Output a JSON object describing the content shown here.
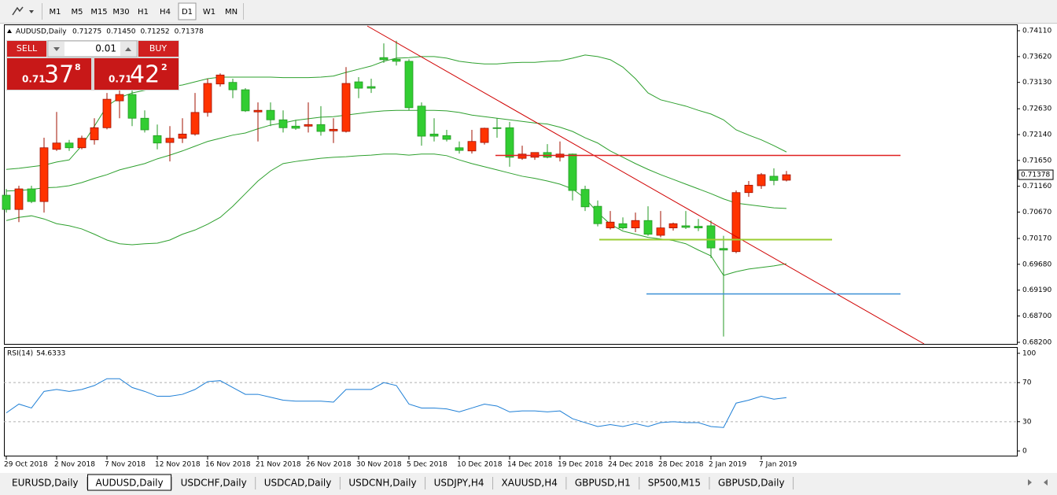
{
  "toolbar": {
    "timeframes": [
      "M1",
      "M5",
      "M15",
      "M30",
      "H1",
      "H4",
      "D1",
      "W1",
      "MN"
    ],
    "active": "D1"
  },
  "trade_panel": {
    "sell": "SELL",
    "buy": "BUY",
    "lot": "0.01",
    "bid_prefix": "0.71",
    "bid_big": "37",
    "bid_small": "8",
    "ask_prefix": "0.71",
    "ask_big": "42",
    "ask_small": "2"
  },
  "tabs": {
    "items": [
      "EURUSD,Daily",
      "AUDUSD,Daily",
      "USDCHF,Daily",
      "USDCAD,Daily",
      "USDCNH,Daily",
      "USDJPY,H4",
      "XAUUSD,H4",
      "GBPUSD,H1",
      "SP500,M15",
      "GBPUSD,Daily"
    ],
    "active": "AUDUSD,Daily"
  },
  "chart_data": [
    {
      "type": "candlestick",
      "symbol": "AUDUSD,Daily",
      "ohlc_labels": [
        "0.71275",
        "0.71450",
        "0.71252",
        "0.71378"
      ],
      "categories": [
        "29 Oct 2018",
        null,
        null,
        null,
        "2 Nov 2018",
        null,
        null,
        null,
        "7 Nov 2018",
        null,
        null,
        null,
        "12 Nov 2018",
        null,
        null,
        null,
        "16 Nov 2018",
        null,
        null,
        null,
        "21 Nov 2018",
        null,
        null,
        null,
        "26 Nov 2018",
        null,
        null,
        null,
        "30 Nov 2018",
        null,
        null,
        null,
        "5 Dec 2018",
        null,
        null,
        null,
        "10 Dec 2018",
        null,
        null,
        null,
        "14 Dec 2018",
        null,
        null,
        null,
        "19 Dec 2018",
        null,
        null,
        null,
        "24 Dec 2018",
        null,
        null,
        null,
        "28 Dec 2018",
        null,
        null,
        null,
        "2 Jan 2019",
        null,
        null,
        null,
        "7 Jan 2019",
        null,
        null
      ],
      "open": [
        0.7099,
        0.7072,
        0.7111,
        0.7087,
        0.7186,
        0.7198,
        0.7189,
        0.7204,
        0.7227,
        0.7278,
        0.729,
        0.7245,
        0.7212,
        0.7199,
        0.7207,
        0.7215,
        0.7256,
        0.731,
        0.7313,
        0.7299,
        0.7257,
        0.726,
        0.7242,
        0.723,
        0.723,
        0.7233,
        0.7221,
        0.722,
        0.7314,
        0.7305,
        0.736,
        0.7357,
        0.7353,
        0.7268,
        0.7215,
        0.7212,
        0.7189,
        0.7183,
        0.7199,
        0.7227,
        0.7227,
        0.7169,
        0.7171,
        0.718,
        0.7171,
        0.7177,
        0.711,
        0.7078,
        0.7037,
        0.7045,
        0.7037,
        0.7051,
        0.7023,
        0.7037,
        0.7041,
        0.704,
        0.7041,
        0.6998,
        0.6992,
        0.7104,
        0.7117,
        0.7135,
        0.71275
      ],
      "high": [
        0.7111,
        0.7117,
        0.7117,
        0.7208,
        0.7257,
        0.7204,
        0.7212,
        0.7245,
        0.7293,
        0.7305,
        0.7298,
        0.726,
        0.7233,
        0.723,
        0.7245,
        0.7293,
        0.732,
        0.733,
        0.732,
        0.7302,
        0.7275,
        0.7275,
        0.726,
        0.7242,
        0.7275,
        0.7268,
        0.7245,
        0.7342,
        0.7323,
        0.732,
        0.7387,
        0.7392,
        0.7357,
        0.7275,
        0.7245,
        0.7223,
        0.7201,
        0.7223,
        0.7227,
        0.7245,
        0.7238,
        0.7193,
        0.718,
        0.7196,
        0.7201,
        0.7178,
        0.7117,
        0.7089,
        0.7069,
        0.7057,
        0.7066,
        0.7078,
        0.7069,
        0.7047,
        0.7069,
        0.7054,
        0.7051,
        0.7022,
        0.7108,
        0.7126,
        0.7141,
        0.715,
        0.7145
      ],
      "low": [
        0.7066,
        0.7048,
        0.7084,
        0.7066,
        0.7183,
        0.7183,
        0.7186,
        0.7195,
        0.7224,
        0.7245,
        0.723,
        0.7218,
        0.7186,
        0.7163,
        0.7198,
        0.7212,
        0.7248,
        0.7305,
        0.7283,
        0.7257,
        0.7201,
        0.723,
        0.7218,
        0.7223,
        0.7218,
        0.7212,
        0.7198,
        0.7218,
        0.7283,
        0.7293,
        0.735,
        0.7345,
        0.726,
        0.7193,
        0.7201,
        0.7201,
        0.7178,
        0.7178,
        0.7195,
        0.7208,
        0.7153,
        0.7166,
        0.7166,
        0.7169,
        0.7163,
        0.7089,
        0.7069,
        0.704,
        0.7034,
        0.7034,
        0.7029,
        0.7022,
        0.7019,
        0.7032,
        0.7035,
        0.7031,
        0.698,
        0.6831,
        0.6989,
        0.7096,
        0.7111,
        0.7118,
        0.71252
      ],
      "close": [
        0.7072,
        0.7111,
        0.7087,
        0.7189,
        0.7198,
        0.7189,
        0.7207,
        0.7227,
        0.7281,
        0.729,
        0.7245,
        0.7223,
        0.7198,
        0.7207,
        0.7215,
        0.7256,
        0.7311,
        0.7327,
        0.7299,
        0.7259,
        0.726,
        0.7242,
        0.7227,
        0.7226,
        0.7233,
        0.722,
        0.7224,
        0.7311,
        0.7302,
        0.7302,
        0.7356,
        0.7353,
        0.7265,
        0.7211,
        0.7211,
        0.7205,
        0.7184,
        0.7201,
        0.7226,
        0.7226,
        0.7171,
        0.7177,
        0.718,
        0.7171,
        0.7177,
        0.7108,
        0.7077,
        0.7045,
        0.7048,
        0.7037,
        0.7051,
        0.7025,
        0.7037,
        0.7045,
        0.7038,
        0.7037,
        0.6999,
        0.6995,
        0.7104,
        0.7118,
        0.7138,
        0.7127,
        0.71378
      ],
      "up_color": "#ff3300",
      "down_color": "#32cd32",
      "overlays": [
        {
          "color": "#2ea02e",
          "values": [
            0.7148,
            0.715,
            0.7153,
            0.7156,
            0.7162,
            0.7166,
            0.7193,
            0.723,
            0.7268,
            0.7284,
            0.7293,
            0.7298,
            0.7302,
            0.7305,
            0.7308,
            0.7314,
            0.732,
            0.7323,
            0.7323,
            0.7323,
            0.7323,
            0.7323,
            0.7322,
            0.7322,
            0.7322,
            0.7323,
            0.7325,
            0.7332,
            0.7338,
            0.7344,
            0.7353,
            0.7359,
            0.736,
            0.7362,
            0.7362,
            0.7359,
            0.7353,
            0.735,
            0.7348,
            0.7348,
            0.735,
            0.7351,
            0.7351,
            0.7353,
            0.7354,
            0.7359,
            0.7365,
            0.7362,
            0.7356,
            0.7342,
            0.732,
            0.7293,
            0.728,
            0.7274,
            0.7268,
            0.726,
            0.7253,
            0.7242,
            0.7223,
            0.7213,
            0.7204,
            0.7193,
            0.7181
          ]
        },
        {
          "color": "#2ea02e",
          "values": [
            0.7107,
            0.7108,
            0.711,
            0.7113,
            0.7114,
            0.7117,
            0.7123,
            0.7131,
            0.7138,
            0.7147,
            0.7153,
            0.7159,
            0.7168,
            0.7175,
            0.7183,
            0.7192,
            0.7201,
            0.7207,
            0.7213,
            0.7217,
            0.7225,
            0.7232,
            0.7236,
            0.7241,
            0.7244,
            0.7247,
            0.7248,
            0.7251,
            0.7254,
            0.7257,
            0.7259,
            0.726,
            0.726,
            0.726,
            0.726,
            0.7259,
            0.7256,
            0.7251,
            0.7248,
            0.7245,
            0.7242,
            0.7239,
            0.7236,
            0.7234,
            0.7228,
            0.722,
            0.7208,
            0.7198,
            0.7183,
            0.7171,
            0.7159,
            0.7148,
            0.7138,
            0.7129,
            0.712,
            0.7111,
            0.7102,
            0.7092,
            0.7084,
            0.7081,
            0.7078,
            0.7075,
            0.7074
          ]
        },
        {
          "color": "#2ea02e",
          "values": [
            0.7051,
            0.7057,
            0.706,
            0.7054,
            0.7045,
            0.7041,
            0.7035,
            0.7025,
            0.7014,
            0.7007,
            0.7005,
            0.7007,
            0.7008,
            0.7014,
            0.7025,
            0.7033,
            0.7044,
            0.7057,
            0.7078,
            0.7102,
            0.7126,
            0.7145,
            0.7159,
            0.7163,
            0.7166,
            0.7169,
            0.7171,
            0.7172,
            0.7174,
            0.7175,
            0.7177,
            0.7177,
            0.7175,
            0.7177,
            0.7177,
            0.7174,
            0.7166,
            0.7159,
            0.7153,
            0.7147,
            0.7141,
            0.7135,
            0.7131,
            0.7126,
            0.712,
            0.7111,
            0.7093,
            0.7066,
            0.7044,
            0.7031,
            0.7025,
            0.7019,
            0.7016,
            0.7013,
            0.7007,
            0.6995,
            0.6984,
            0.6947,
            0.6954,
            0.6959,
            0.6962,
            0.6965,
            0.6969
          ]
        }
      ],
      "ylim": [
        0.6817,
        0.742
      ],
      "yticks": [
        {
          "value": 0.7411,
          "label": "0.74110"
        },
        {
          "value": 0.7362,
          "label": "0.73620"
        },
        {
          "value": 0.7313,
          "label": "0.73130"
        },
        {
          "value": 0.7263,
          "label": "0.72630"
        },
        {
          "value": 0.7214,
          "label": "0.72140"
        },
        {
          "value": 0.7165,
          "label": "0.71650"
        },
        {
          "value": 0.7116,
          "label": "0.71160"
        },
        {
          "value": 0.7067,
          "label": "0.70670"
        },
        {
          "value": 0.7017,
          "label": "0.70170"
        },
        {
          "value": 0.6968,
          "label": "0.69680"
        },
        {
          "value": 0.6919,
          "label": "0.69190"
        },
        {
          "value": 0.687,
          "label": "0.68700"
        },
        {
          "value": 0.682,
          "label": "0.68200"
        }
      ]
    },
    {
      "type": "line",
      "title": "RSI(14)",
      "series": [
        {
          "color": "#1e7fd6",
          "values": [
            39,
            48,
            44,
            61,
            63,
            61,
            63,
            67,
            74,
            74,
            65,
            61,
            56,
            56,
            58,
            63,
            71,
            72,
            65,
            58,
            58,
            55,
            52,
            51,
            51,
            51,
            50,
            63,
            63,
            63,
            70,
            67,
            48,
            44,
            44,
            43,
            40,
            44,
            48,
            46,
            40,
            41,
            41,
            40,
            41,
            33,
            29,
            25,
            27,
            25,
            28,
            25,
            29,
            30,
            29,
            29,
            25,
            24,
            49,
            52,
            56,
            53,
            54.6333
          ]
        }
      ],
      "ylim": [
        -4.8,
        105.6
      ],
      "yticks": [
        0,
        30,
        70,
        100
      ],
      "levels": [
        30,
        70
      ]
    }
  ]
}
